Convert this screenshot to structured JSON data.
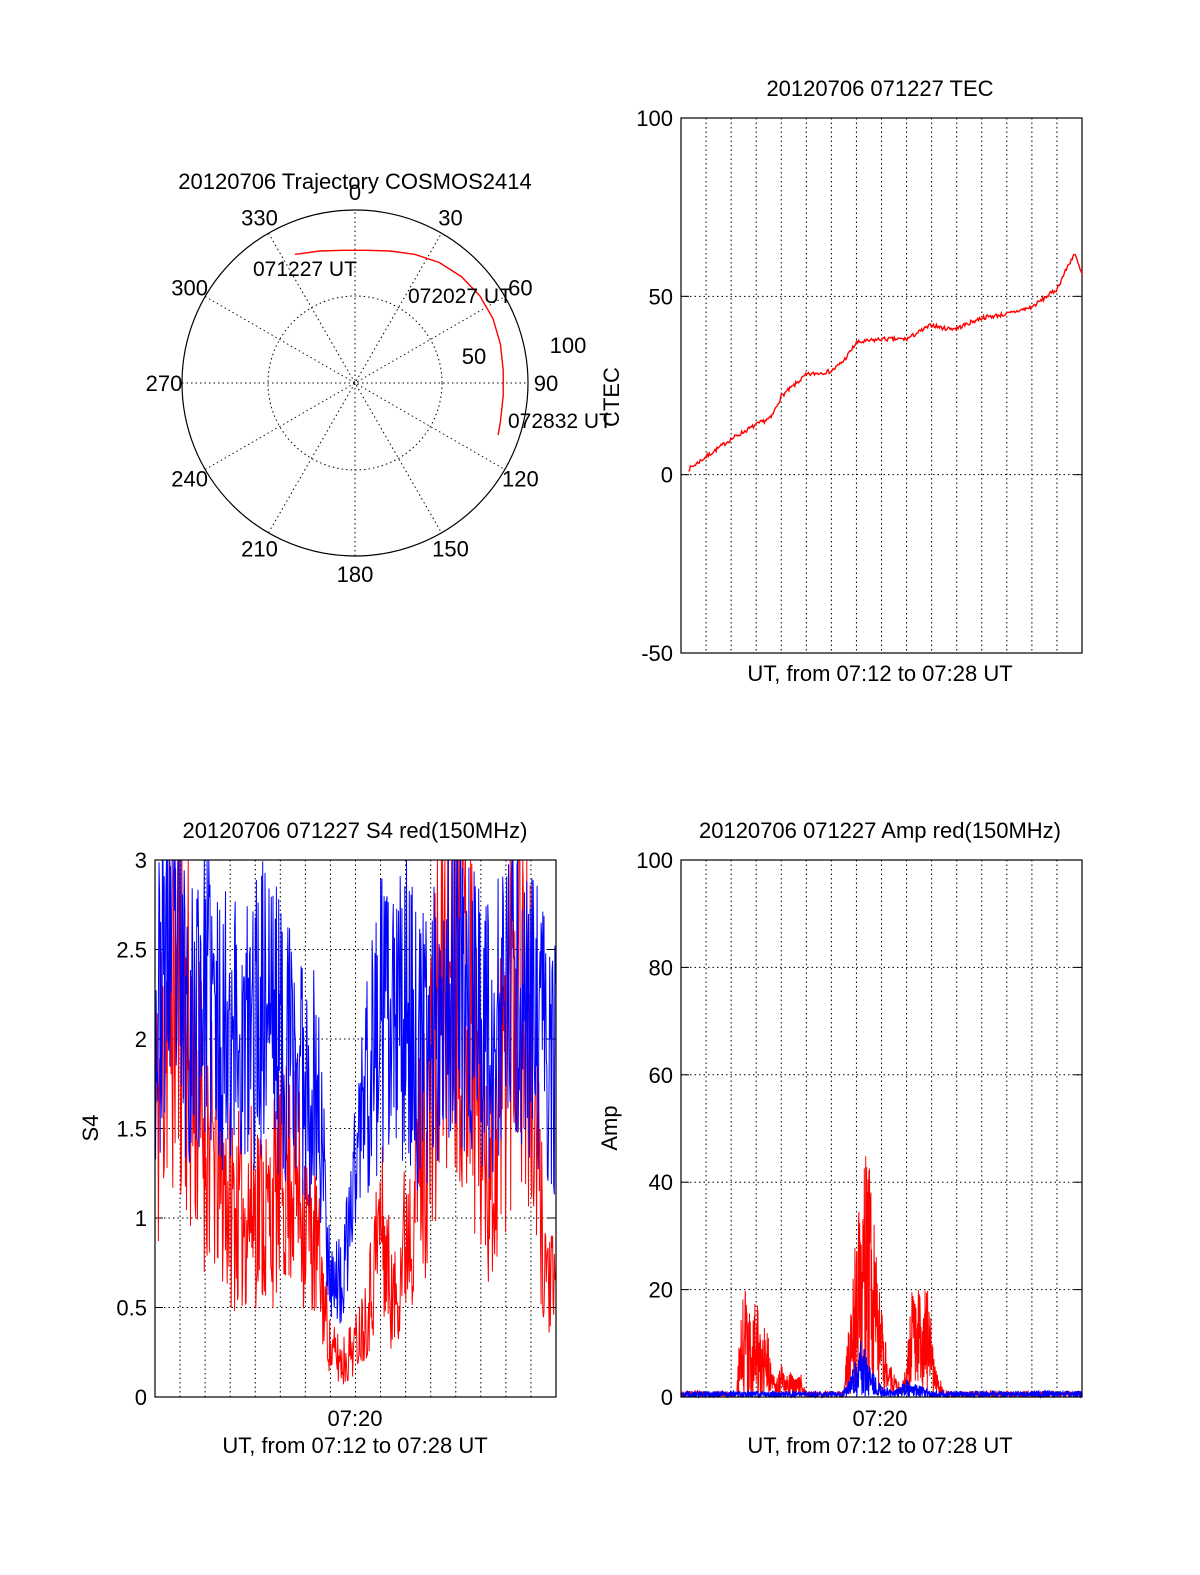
{
  "colors": {
    "red": "#ff0000",
    "blue": "#0000ff",
    "axis": "#000000",
    "background": "#ffffff"
  },
  "chart_data": [
    {
      "type": "polar",
      "title": "20120706 Trajectory COSMOS2414",
      "azimuth_labels": [
        "0",
        "30",
        "60",
        "90",
        "120",
        "150",
        "180",
        "210",
        "240",
        "270",
        "300",
        "330"
      ],
      "radial_labels": [
        "50",
        "100"
      ],
      "radial_max": 100,
      "grid": true,
      "annotations": [
        "071227 UT",
        "072027 UT",
        "072832 UT"
      ],
      "series": [
        {
          "color": "red",
          "points_az_deg_r": [
            [
              -25,
              82
            ],
            [
              -15,
              79
            ],
            [
              -5,
              77
            ],
            [
              5,
              77
            ],
            [
              15,
              79
            ],
            [
              25,
              82
            ],
            [
              35,
              85
            ],
            [
              45,
              87
            ],
            [
              55,
              88
            ],
            [
              65,
              88
            ],
            [
              75,
              87
            ],
            [
              85,
              86
            ],
            [
              95,
              86
            ],
            [
              105,
              87
            ],
            [
              110,
              88
            ]
          ]
        }
      ]
    },
    {
      "type": "line",
      "title": "20120706 071227 TEC",
      "xlabel": "UT, from 07:12 to 07:28 UT",
      "ylabel": "CTEC",
      "xlim": [
        0,
        16
      ],
      "ylim": [
        -50,
        100
      ],
      "yticks": [
        "100",
        "50",
        "0",
        "-50"
      ],
      "grid": true,
      "series": [
        {
          "color": "red",
          "x": [
            0,
            1,
            2,
            3,
            3.6,
            4,
            5,
            6,
            6.5,
            7,
            8,
            9,
            10,
            10.5,
            11,
            12,
            13,
            14,
            15,
            15.4,
            15.7,
            16
          ],
          "y": [
            0,
            5,
            10,
            14,
            16,
            22,
            28,
            29,
            32,
            37,
            38,
            38,
            42,
            41,
            41,
            44,
            45,
            47,
            52,
            58,
            62,
            56
          ]
        }
      ]
    },
    {
      "type": "line",
      "title": "20120706 071227 S4 red(150MHz)",
      "xlabel": "UT, from 07:12 to 07:28 UT",
      "ylabel": "S4",
      "xlim": [
        0,
        16
      ],
      "ylim": [
        0,
        3
      ],
      "yticks": [
        "3",
        "2.5",
        "2",
        "1.5",
        "1",
        "0.5",
        "0"
      ],
      "xticks": [
        "07:20"
      ],
      "grid": true,
      "series": [
        {
          "color": "red",
          "x": [
            0,
            0.5,
            1,
            1.5,
            2,
            2.5,
            3,
            3.5,
            4,
            4.5,
            5,
            5.5,
            6,
            6.5,
            7,
            7.5,
            8,
            8.5,
            9,
            9.5,
            10,
            10.5,
            11,
            11.5,
            12,
            12.5,
            13,
            13.5,
            14,
            14.5,
            15,
            15.5,
            16
          ],
          "y": [
            1.4,
            2.2,
            2.4,
            1.8,
            1.5,
            1.3,
            1.1,
            1.0,
            1.1,
            1.0,
            1.2,
            1.3,
            1.0,
            0.8,
            0.25,
            0.2,
            0.3,
            0.5,
            1.0,
            0.5,
            0.9,
            1.3,
            1.6,
            2.4,
            2.8,
            2.3,
            1.6,
            1.2,
            2.0,
            2.7,
            1.8,
            0.8,
            0.5
          ]
        },
        {
          "color": "blue",
          "x": [
            0,
            0.5,
            1,
            1.5,
            2,
            2.5,
            3,
            3.5,
            4,
            4.5,
            5,
            5.5,
            6,
            6.5,
            7,
            7.5,
            8,
            8.5,
            9,
            9.5,
            10,
            10.5,
            11,
            11.5,
            12,
            12.5,
            13,
            13.5,
            14,
            14.5,
            15,
            15.5,
            16
          ],
          "y": [
            2.0,
            2.6,
            2.3,
            2.1,
            2.4,
            2.0,
            2.2,
            1.9,
            2.1,
            2.3,
            2.0,
            1.9,
            1.8,
            1.7,
            0.7,
            0.6,
            1.3,
            1.8,
            2.1,
            2.0,
            2.2,
            1.9,
            2.0,
            2.3,
            2.4,
            2.2,
            2.1,
            2.0,
            2.2,
            2.3,
            2.1,
            2.0,
            1.8
          ]
        }
      ]
    },
    {
      "type": "line",
      "title": "20120706 071227 Amp red(150MHz)",
      "xlabel": "UT, from 07:12 to 07:28 UT",
      "ylabel": "Amp",
      "xlim": [
        0,
        16
      ],
      "ylim": [
        0,
        100
      ],
      "yticks": [
        "100",
        "80",
        "60",
        "40",
        "20",
        "0"
      ],
      "xticks": [
        "07:20"
      ],
      "grid": true,
      "series": [
        {
          "color": "red",
          "x": [
            0,
            2.2,
            2.4,
            2.6,
            2.8,
            3.0,
            3.2,
            3.4,
            3.6,
            3.8,
            4.0,
            4.2,
            4.4,
            4.6,
            4.8,
            5.0,
            6.5,
            6.8,
            7.0,
            7.2,
            7.4,
            7.6,
            7.8,
            8.0,
            8.2,
            8.4,
            8.6,
            8.8,
            9.0,
            9.2,
            9.4,
            9.6,
            9.8,
            10.0,
            10.2,
            10.5,
            16
          ],
          "y": [
            1,
            1,
            15,
            20,
            12,
            18,
            10,
            14,
            6,
            3,
            6,
            4,
            5,
            3,
            4,
            1,
            1,
            20,
            28,
            35,
            45,
            38,
            25,
            15,
            8,
            5,
            3,
            2,
            6,
            18,
            22,
            15,
            20,
            12,
            5,
            1,
            1
          ]
        },
        {
          "color": "blue",
          "x": [
            0,
            6.5,
            6.8,
            7.0,
            7.2,
            7.4,
            7.6,
            7.8,
            8.0,
            8.5,
            9.0,
            9.5,
            10.0,
            16
          ],
          "y": [
            1,
            1,
            4,
            7,
            10,
            8,
            5,
            3,
            2,
            1,
            3,
            2,
            1,
            1
          ]
        }
      ]
    }
  ]
}
